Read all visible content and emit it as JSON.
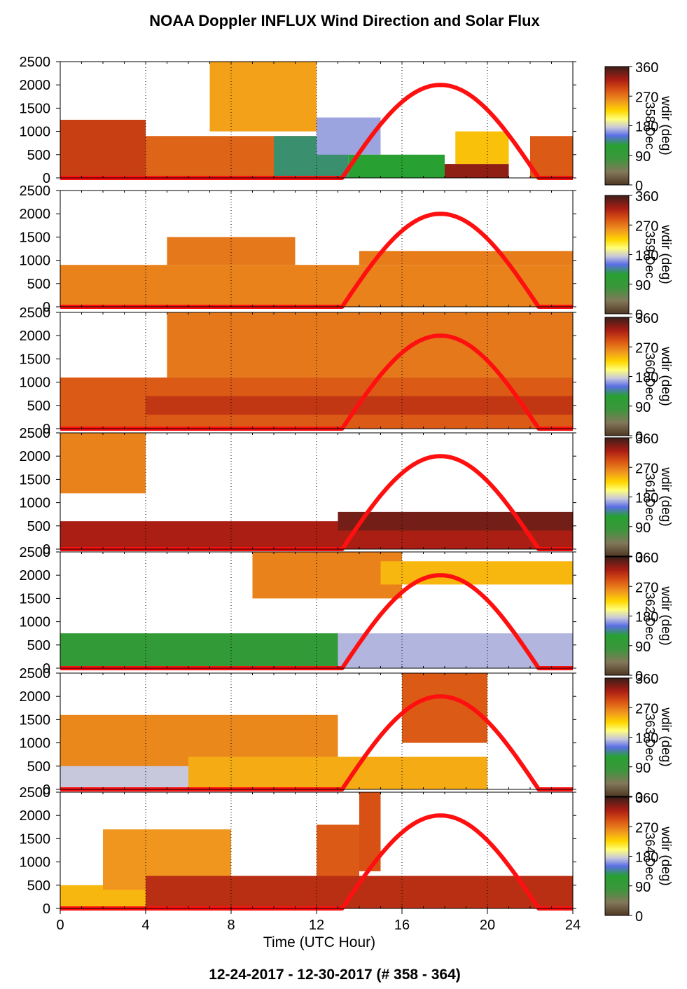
{
  "title": "NOAA Doppler INFLUX Wind Direction and Solar Flux",
  "footer": "12-24-2017 - 12-30-2017   (# 358 - 364)",
  "chart_data": {
    "type": "heatmap",
    "title": "NOAA Doppler INFLUX Wind Direction and Solar Flux",
    "xlabel": "Time (UTC Hour)",
    "xlim": [
      0,
      24
    ],
    "xticks": [
      0,
      4,
      8,
      12,
      16,
      20,
      24
    ],
    "ylim": [
      0,
      2500
    ],
    "yticks": [
      0,
      500,
      1000,
      1500,
      2000,
      2500
    ],
    "colorbar": {
      "label": "wdir (deg)",
      "range": [
        0,
        360
      ],
      "ticks": [
        0,
        90,
        180,
        270,
        360
      ]
    },
    "solar_flux": {
      "color": "#ff1010",
      "rise_hour": 13.2,
      "set_hour": 22.4,
      "peak_hour": 17.7,
      "peak_axis_value": 2000
    },
    "panels": [
      {
        "day": "358",
        "colorbar_label": "wdir (deg)",
        "colorbar_sublabel": "358-Dec",
        "regions": [
          {
            "t0": 0,
            "t1": 4,
            "h0": 0,
            "h1": 1250,
            "wdir": 300
          },
          {
            "t0": 4,
            "t1": 12,
            "h0": 0,
            "h1": 900,
            "wdir": 280
          },
          {
            "t0": 7,
            "t1": 12,
            "h0": 1000,
            "h1": 2500,
            "wdir": 250
          },
          {
            "t0": 10,
            "t1": 13.5,
            "h0": 0,
            "h1": 900,
            "wdir": 130
          },
          {
            "t0": 12,
            "t1": 15,
            "h0": 500,
            "h1": 1300,
            "wdir": 165
          },
          {
            "t0": 13.5,
            "t1": 18,
            "h0": 0,
            "h1": 500,
            "wdir": 120
          },
          {
            "t0": 18,
            "t1": 21,
            "h0": 0,
            "h1": 300,
            "wdir": 330
          },
          {
            "t0": 18.5,
            "t1": 21,
            "h0": 300,
            "h1": 1000,
            "wdir": 235
          },
          {
            "t0": 22,
            "t1": 24,
            "h0": 0,
            "h1": 900,
            "wdir": 285
          }
        ]
      },
      {
        "day": "359",
        "colorbar_label": "wdir (deg)",
        "colorbar_sublabel": "359-Dec",
        "regions": [
          {
            "t0": 0,
            "t1": 24,
            "h0": 0,
            "h1": 900,
            "wdir": 265
          },
          {
            "t0": 5,
            "t1": 11,
            "h0": 900,
            "h1": 1500,
            "wdir": 270
          },
          {
            "t0": 14,
            "t1": 24,
            "h0": 900,
            "h1": 1200,
            "wdir": 268
          }
        ]
      },
      {
        "day": "360",
        "colorbar_label": "wdir (deg)",
        "colorbar_sublabel": "360-Dec",
        "regions": [
          {
            "t0": 0,
            "t1": 24,
            "h0": 0,
            "h1": 1100,
            "wdir": 285
          },
          {
            "t0": 4,
            "t1": 24,
            "h0": 300,
            "h1": 700,
            "wdir": 305
          },
          {
            "t0": 5,
            "t1": 24,
            "h0": 1100,
            "h1": 2500,
            "wdir": 270
          }
        ]
      },
      {
        "day": "361",
        "colorbar_label": "wdir (deg)",
        "colorbar_sublabel": "361-Dec",
        "regions": [
          {
            "t0": 0,
            "t1": 4,
            "h0": 1200,
            "h1": 2500,
            "wdir": 265
          },
          {
            "t0": 0,
            "t1": 24,
            "h0": 0,
            "h1": 600,
            "wdir": 320
          },
          {
            "t0": 13,
            "t1": 24,
            "h0": 400,
            "h1": 800,
            "wdir": 340
          }
        ]
      },
      {
        "day": "362",
        "colorbar_label": "wdir (deg)",
        "colorbar_sublabel": "362-Dec",
        "regions": [
          {
            "t0": 0,
            "t1": 13,
            "h0": 0,
            "h1": 750,
            "wdir": 100
          },
          {
            "t0": 13,
            "t1": 24,
            "h0": 0,
            "h1": 750,
            "wdir": 170
          },
          {
            "t0": 9,
            "t1": 16,
            "h0": 1500,
            "h1": 2500,
            "wdir": 265
          },
          {
            "t0": 15,
            "t1": 24,
            "h0": 1800,
            "h1": 2300,
            "wdir": 240
          }
        ]
      },
      {
        "day": "363",
        "colorbar_label": "wdir (deg)",
        "colorbar_sublabel": "363-Dec",
        "regions": [
          {
            "t0": 0,
            "t1": 13,
            "h0": 400,
            "h1": 1600,
            "wdir": 262
          },
          {
            "t0": 0,
            "t1": 6,
            "h0": 0,
            "h1": 500,
            "wdir": 175
          },
          {
            "t0": 6,
            "t1": 20,
            "h0": 0,
            "h1": 700,
            "wdir": 245
          },
          {
            "t0": 16,
            "t1": 20,
            "h0": 1000,
            "h1": 2500,
            "wdir": 285
          }
        ]
      },
      {
        "day": "364",
        "colorbar_label": "wdir (deg)",
        "colorbar_sublabel": "364-Dec",
        "regions": [
          {
            "t0": 0,
            "t1": 4,
            "h0": 0,
            "h1": 500,
            "wdir": 240
          },
          {
            "t0": 2,
            "t1": 8,
            "h0": 400,
            "h1": 1700,
            "wdir": 255
          },
          {
            "t0": 4,
            "t1": 24,
            "h0": 0,
            "h1": 700,
            "wdir": 310
          },
          {
            "t0": 12,
            "t1": 14,
            "h0": 700,
            "h1": 1800,
            "wdir": 285
          },
          {
            "t0": 14,
            "t1": 15,
            "h0": 800,
            "h1": 2500,
            "wdir": 290
          }
        ]
      }
    ]
  }
}
